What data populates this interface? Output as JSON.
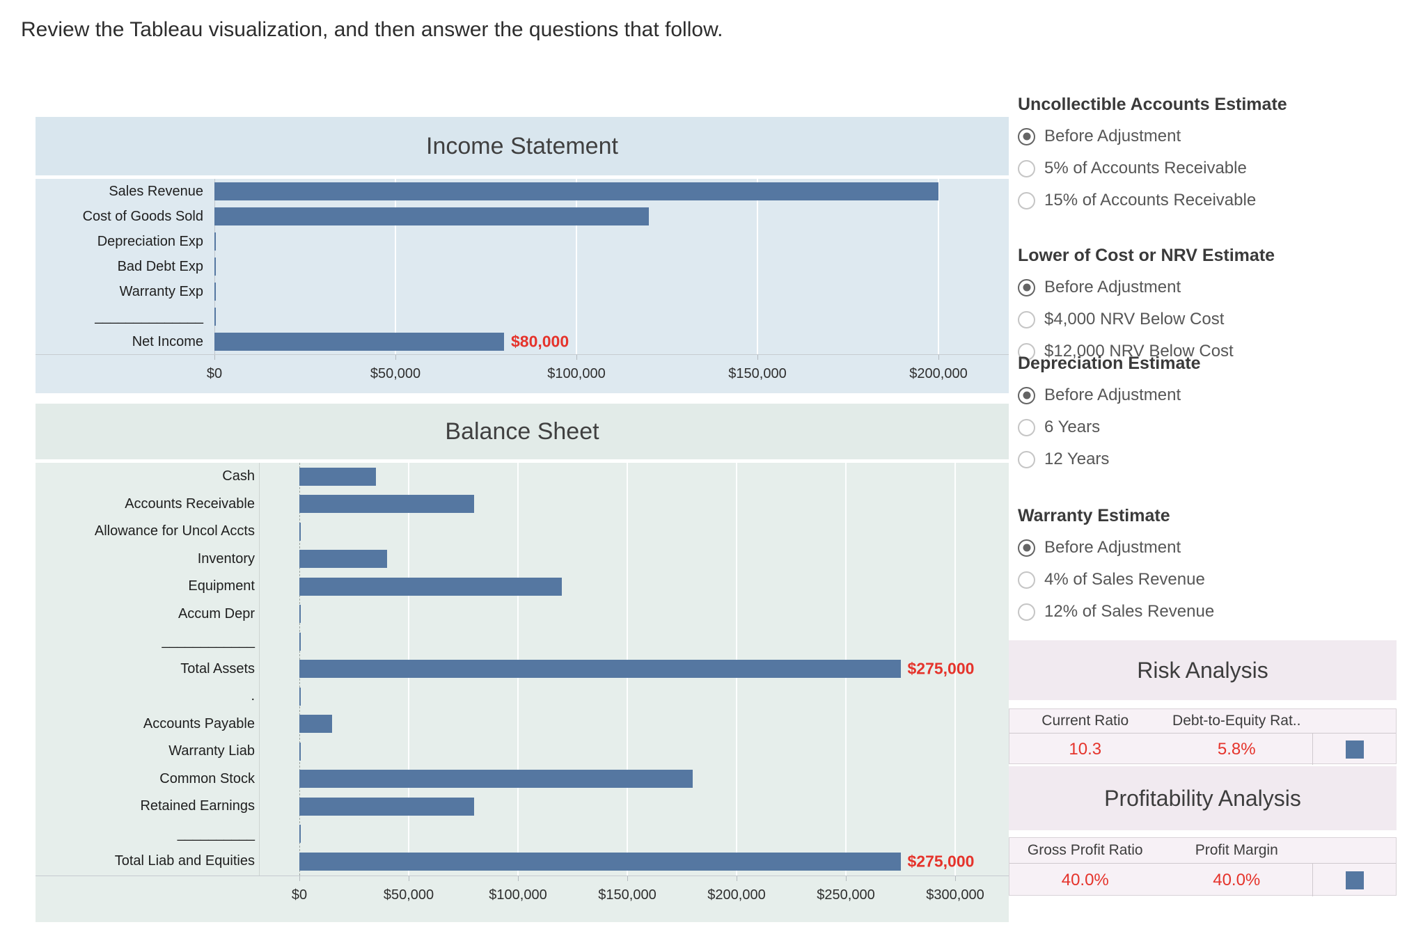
{
  "page": {
    "instruction": "Review the Tableau visualization, and then answer the questions that follow."
  },
  "colors": {
    "bar": "#5577a1",
    "value_red": "#e5332b",
    "income_band": "#d9e6ee",
    "income_bg": "#dee9f0",
    "balance_band": "#e2ebe8",
    "balance_bg": "#e6eeeb",
    "analysis_band": "#f1eaf0",
    "analysis_table_bg": "#f7f1f6"
  },
  "chart_data": [
    {
      "id": "income",
      "type": "bar",
      "orientation": "horizontal",
      "title": "Income Statement",
      "categories": [
        "Sales Revenue",
        "Cost of Goods Sold",
        "Depreciation Exp",
        "Bad Debt Exp",
        "Warranty Exp",
        "______________",
        "Net Income"
      ],
      "values": [
        200000,
        120000,
        0,
        0,
        0,
        0,
        80000
      ],
      "annotations": [
        null,
        null,
        null,
        null,
        null,
        null,
        "$80,000"
      ],
      "x_tick_values": [
        0,
        50000,
        100000,
        150000,
        200000
      ],
      "x_tick_labels": [
        "$0",
        "$50,000",
        "$100,000",
        "$150,000",
        "$200,000"
      ],
      "xlim": [
        0,
        219500
      ],
      "zero_style": "solid",
      "grid": true,
      "legend": "none"
    },
    {
      "id": "balance",
      "type": "bar",
      "orientation": "horizontal",
      "title": "Balance Sheet",
      "categories": [
        "Cash",
        "Accounts Receivable",
        "Allowance for Uncol Accts",
        "Inventory",
        "Equipment",
        "Accum Depr",
        "____________",
        "Total Assets",
        ".",
        "Accounts Payable",
        "Warranty Liab",
        "Common Stock",
        "Retained Earnings",
        "__________",
        "Total Liab and Equities"
      ],
      "values": [
        35000,
        80000,
        0,
        40000,
        120000,
        0,
        0,
        275000,
        0,
        15000,
        0,
        180000,
        80000,
        0,
        275000
      ],
      "annotations": [
        null,
        null,
        null,
        null,
        null,
        null,
        null,
        "$275,000",
        null,
        null,
        null,
        null,
        null,
        null,
        "$275,000"
      ],
      "x_tick_values": [
        0,
        50000,
        100000,
        150000,
        200000,
        250000,
        300000
      ],
      "x_tick_labels": [
        "$0",
        "$50,000",
        "$100,000",
        "$150,000",
        "$200,000",
        "$250,000",
        "$300,000"
      ],
      "xlim": [
        0,
        319000
      ],
      "zero_style": "dashed",
      "grid": true,
      "legend": "none"
    }
  ],
  "filters": [
    {
      "title": "Uncollectible Accounts Estimate",
      "options": [
        "Before Adjustment",
        "5% of Accounts Receivable",
        "15% of Accounts Receivable"
      ],
      "selected": 0
    },
    {
      "title": "Lower of Cost or NRV Estimate",
      "options": [
        "Before Adjustment",
        "$4,000 NRV Below Cost",
        "$12,000 NRV Below Cost"
      ],
      "selected": 0
    },
    {
      "title": "Depreciation Estimate",
      "options": [
        "Before Adjustment",
        "6 Years",
        "12 Years"
      ],
      "selected": 0
    },
    {
      "title": "Warranty Estimate",
      "options": [
        "Before Adjustment",
        "4% of Sales Revenue",
        "12% of Sales Revenue"
      ],
      "selected": 0
    }
  ],
  "risk_analysis": {
    "title": "Risk Analysis",
    "columns": [
      "Current Ratio",
      "Debt-to-Equity Rat.."
    ],
    "values": [
      "10.3",
      "5.8%"
    ],
    "legend_mark": "blue-square"
  },
  "profitability_analysis": {
    "title": "Profitability Analysis",
    "columns": [
      "Gross Profit Ratio",
      "Profit Margin"
    ],
    "values": [
      "40.0%",
      "40.0%"
    ],
    "legend_mark": "blue-square"
  }
}
